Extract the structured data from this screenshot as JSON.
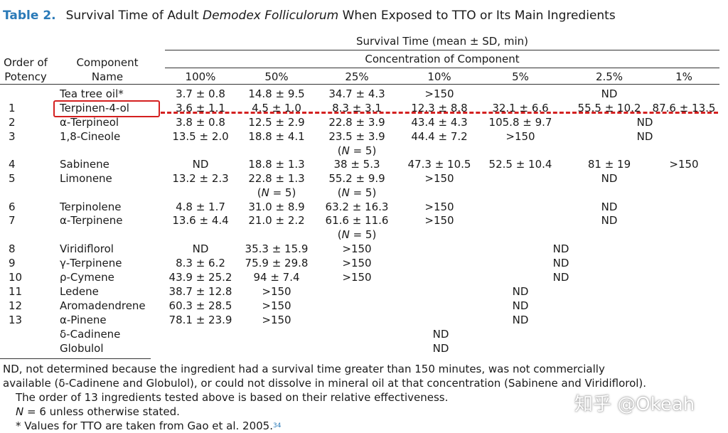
{
  "caption": {
    "label": "Table 2.",
    "pre": "Survival Time of Adult ",
    "species": "Demodex Folliculorum",
    "post": " When Exposed to TTO or Its Main Ingredients"
  },
  "header": {
    "order_line1": "Order of",
    "order_line2": "Potency",
    "component_line1": "Component",
    "component_line2": "Name",
    "survival_time": "Survival Time (mean ± SD, min)",
    "concentration": "Concentration of Component",
    "columns": [
      "100%",
      "50%",
      "25%",
      "10%",
      "5%",
      "2.5%",
      "1%"
    ]
  },
  "rows": [
    {
      "order": "",
      "name": "Tea tree oil*",
      "v": [
        "3.7 ± 0.8",
        "14.8 ± 9.5",
        "34.7 ± 4.3",
        ">150",
        "",
        "ND",
        ""
      ]
    },
    {
      "order": "1",
      "name": "Terpinen-4-ol",
      "v": [
        "3.6 ± 1.1",
        "4.5 ± 1.0",
        "8.3 ± 3.1",
        "12.3 ± 8.8",
        "32.1 ± 6.6",
        "55.5 ± 10.2",
        "87.6 ± 13.5"
      ]
    },
    {
      "order": "2",
      "name": "α-Terpineol",
      "v": [
        "3.8 ± 0.8",
        "12.5 ± 2.9",
        "22.8 ± 3.9",
        "43.4 ± 4.3",
        "105.8 ± 9.7",
        "",
        "ND"
      ]
    },
    {
      "order": "3",
      "name": "1,8-Cineole",
      "v": [
        "13.5 ± 2.0",
        "18.8 ± 4.1",
        "23.5 ± 3.9",
        "44.4 ± 7.2",
        ">150",
        "",
        "ND"
      ]
    },
    {
      "order": "4",
      "name": "Sabinene",
      "v": [
        "ND",
        "18.8 ± 1.3",
        "38 ± 5.3",
        "47.3 ± 10.5",
        "52.5 ± 10.4",
        "81 ± 19",
        ">150"
      ]
    },
    {
      "order": "5",
      "name": "Limonene",
      "v": [
        "13.2 ± 2.3",
        "22.8 ± 1.3",
        "55.2 ± 9.9",
        ">150",
        "",
        "ND",
        ""
      ]
    },
    {
      "order": "6",
      "name": "Terpinolene",
      "v": [
        "4.8 ± 1.7",
        "31.0 ± 8.9",
        "63.2 ± 16.3",
        ">150",
        "",
        "ND",
        ""
      ]
    },
    {
      "order": "7",
      "name": "α-Terpinene",
      "v": [
        "13.6 ± 4.4",
        "21.0 ± 2.2",
        "61.6 ± 11.6",
        ">150",
        "",
        "ND",
        ""
      ]
    },
    {
      "order": "8",
      "name": "Viridiflorol",
      "v": [
        "ND",
        "35.3 ± 15.9",
        ">150",
        "",
        "",
        "ND",
        ""
      ]
    },
    {
      "order": "9",
      "name": "γ-Terpinene",
      "v": [
        "8.3 ± 6.2",
        "75.9 ± 29.8",
        ">150",
        "",
        "",
        "ND",
        ""
      ]
    },
    {
      "order": "10",
      "name": "ρ-Cymene",
      "v": [
        "43.9 ± 25.2",
        "94 ± 7.4",
        ">150",
        "",
        "",
        "ND",
        ""
      ]
    },
    {
      "order": "11",
      "name": "Ledene",
      "v": [
        "38.7 ± 12.8",
        ">150",
        "",
        "",
        "ND",
        "",
        ""
      ]
    },
    {
      "order": "12",
      "name": "Aromadendrene",
      "v": [
        "60.3 ± 28.5",
        ">150",
        "",
        "",
        "ND",
        "",
        ""
      ]
    },
    {
      "order": "13",
      "name": "α-Pinene",
      "v": [
        "78.1 ± 23.9",
        ">150",
        "",
        "",
        "ND",
        "",
        ""
      ]
    },
    {
      "order": "",
      "name": "δ-Cadinene",
      "v": [
        "",
        "",
        "",
        "ND",
        "",
        "",
        ""
      ]
    },
    {
      "order": "",
      "name": "Globulol",
      "v": [
        "",
        "",
        "",
        "ND",
        "",
        "",
        ""
      ]
    }
  ],
  "subnotes": [
    {
      "row": 3,
      "col": 2,
      "pre": "(",
      "n": "N",
      "post": " = 5)"
    },
    {
      "row": 5,
      "col": 1,
      "pre": "(",
      "n": "N",
      "post": " = 5)"
    },
    {
      "row": 5,
      "col": 2,
      "pre": "(",
      "n": "N",
      "post": " = 5)"
    },
    {
      "row": 7,
      "col": 2,
      "pre": "(",
      "n": "N",
      "post": " = 5)"
    }
  ],
  "footnotes": {
    "nd_line1": "ND, not determined because the ingredient had a survival time greater than 150 minutes, was not commercially",
    "nd_line2": "available (δ-Cadinene and Globulol), or could not dissolve in mineral oil at that concentration (Sabinene and Viridiflorol).",
    "order_note": "The order of 13 ingredients tested above is based on their relative effectiveness.",
    "n_var": "N",
    "n_note": " = 6 unless otherwise stated.",
    "tto_note": "* Values for TTO are taken from Gao et al. 2005.",
    "ref": "34"
  },
  "watermark": "知乎 @Okeah",
  "colors": {
    "caption_label": "#2a7ab8",
    "highlight": "#d42020"
  }
}
